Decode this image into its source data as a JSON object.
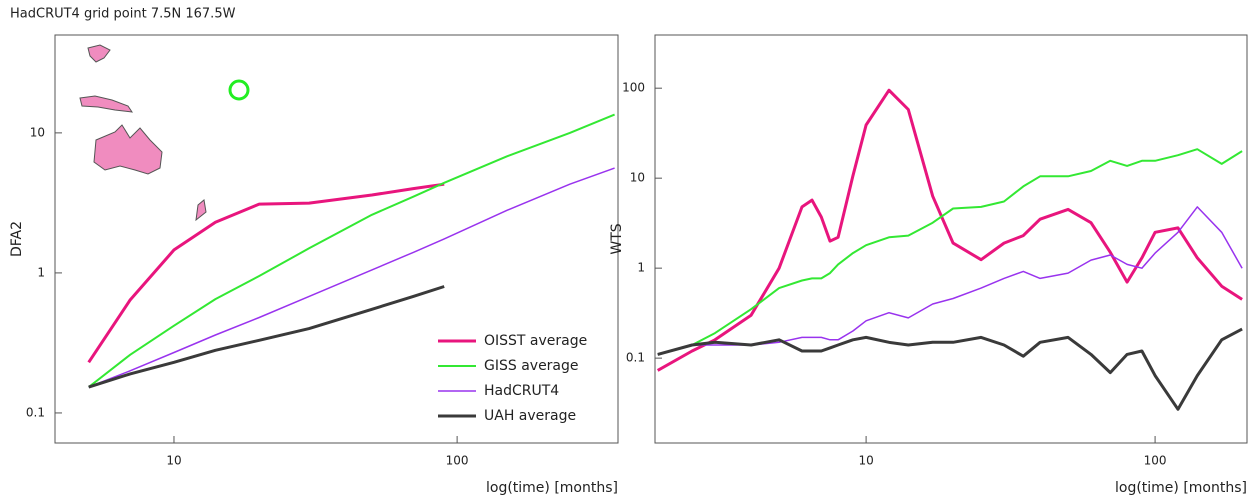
{
  "chart_data": [
    {
      "type": "line",
      "title": "HadCRUT4 grid point 7.5N 167.5W",
      "xlabel": "log(time) [months]",
      "ylabel": "DFA2",
      "xscale": "log",
      "yscale": "log",
      "grid": false,
      "legend": "lower right",
      "xlim": [
        3.8,
        370
      ],
      "ylim": [
        0.061,
        50
      ],
      "xticks": [
        10,
        100
      ],
      "yticks": [
        0.1,
        1,
        10
      ],
      "x": [
        5,
        7,
        10,
        14,
        20,
        30,
        50,
        70,
        90,
        150,
        250,
        360
      ],
      "series": [
        {
          "name": "OISST average",
          "color": "#e8157d",
          "values": [
            0.23,
            0.64,
            1.46,
            2.3,
            3.1,
            3.15,
            3.6,
            4.0,
            4.3,
            null,
            null,
            null
          ]
        },
        {
          "name": "GISS average",
          "color": "#33e833",
          "values": [
            0.153,
            0.26,
            0.42,
            0.65,
            0.95,
            1.5,
            2.6,
            3.5,
            4.4,
            6.8,
            10,
            13.5
          ]
        },
        {
          "name": "HadCRUT4",
          "color": "#9933ee",
          "values": [
            0.153,
            0.2,
            0.27,
            0.36,
            0.48,
            0.68,
            1.05,
            1.4,
            1.75,
            2.8,
            4.3,
            5.6
          ]
        },
        {
          "name": "UAH average",
          "color": "#3a3a3a",
          "values": [
            0.153,
            0.19,
            0.23,
            0.28,
            0.33,
            0.4,
            0.55,
            0.68,
            0.8,
            null,
            null,
            null
          ]
        }
      ]
    },
    {
      "type": "line",
      "xlabel": "log(time) [months]",
      "ylabel": "WTS",
      "xscale": "log",
      "yscale": "log",
      "grid": false,
      "xlim": [
        1.86,
        208
      ],
      "ylim": [
        0.0114,
        390
      ],
      "xticks": [
        10,
        100
      ],
      "yticks": [
        0.1,
        1,
        10,
        100
      ],
      "x": [
        1.9,
        2.5,
        3,
        4,
        5,
        6,
        6.5,
        7,
        7.5,
        8,
        9,
        10,
        12,
        14,
        17,
        20,
        25,
        30,
        35,
        40,
        50,
        60,
        70,
        80,
        90,
        100,
        120,
        140,
        170,
        200
      ],
      "series": [
        {
          "color": "#e8157d",
          "values": [
            0.073,
            0.12,
            0.16,
            0.3,
            1.0,
            4.8,
            5.7,
            3.7,
            2.0,
            2.2,
            10.6,
            39,
            95,
            58,
            6.3,
            1.9,
            1.24,
            1.9,
            2.3,
            3.5,
            4.5,
            3.2,
            1.5,
            0.7,
            1.3,
            2.5,
            2.8,
            1.3,
            0.63,
            0.45
          ]
        },
        {
          "color": "#33e833",
          "values": [
            0.11,
            0.14,
            0.19,
            0.35,
            0.6,
            0.73,
            0.77,
            0.77,
            0.88,
            1.1,
            1.47,
            1.8,
            2.2,
            2.3,
            3.2,
            4.6,
            4.8,
            5.5,
            8.1,
            10.5,
            10.5,
            12,
            15.6,
            13.7,
            15.6,
            15.6,
            18,
            21,
            14.4,
            20
          ]
        },
        {
          "color": "#9933ee",
          "values": [
            0.11,
            0.14,
            0.14,
            0.14,
            0.15,
            0.17,
            0.17,
            0.17,
            0.16,
            0.16,
            0.2,
            0.26,
            0.32,
            0.28,
            0.4,
            0.46,
            0.6,
            0.77,
            0.92,
            0.77,
            0.88,
            1.23,
            1.4,
            1.1,
            1.0,
            1.47,
            2.5,
            4.8,
            2.5,
            1.0
          ]
        },
        {
          "color": "#3a3a3a",
          "values": [
            0.11,
            0.14,
            0.15,
            0.14,
            0.16,
            0.12,
            0.12,
            0.12,
            0.13,
            0.14,
            0.16,
            0.17,
            0.15,
            0.14,
            0.15,
            0.15,
            0.17,
            0.14,
            0.105,
            0.15,
            0.17,
            0.11,
            0.069,
            0.11,
            0.12,
            0.064,
            0.027,
            0.064,
            0.16,
            0.21
          ]
        }
      ]
    }
  ]
}
